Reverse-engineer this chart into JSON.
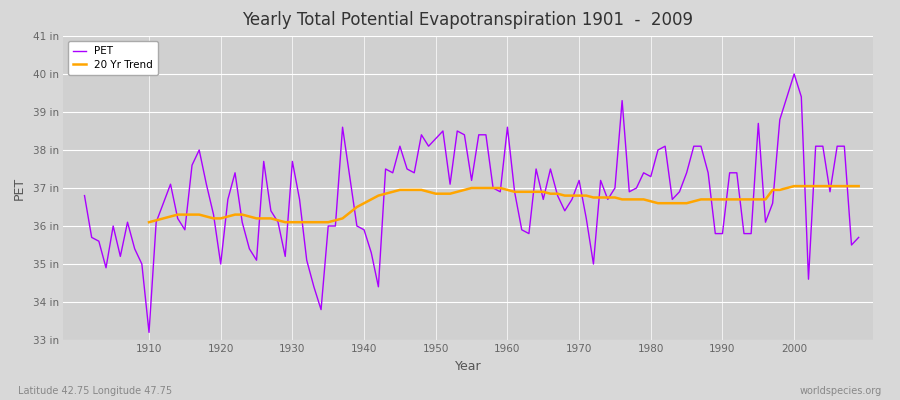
{
  "title": "Yearly Total Potential Evapotranspiration 1901  -  2009",
  "xlabel": "Year",
  "ylabel": "PET",
  "subtitle_left": "Latitude 42.75 Longitude 47.75",
  "subtitle_right": "worldspecies.org",
  "pet_color": "#AA00FF",
  "trend_color": "#FFA500",
  "bg_color": "#D8D8D8",
  "plot_bg_color": "#D0D0D0",
  "grid_color": "#FFFFFF",
  "ylim": [
    33,
    41
  ],
  "yticks": [
    33,
    34,
    35,
    36,
    37,
    38,
    39,
    40,
    41
  ],
  "ytick_labels": [
    "33 in",
    "34 in",
    "35 in",
    "36 in",
    "37 in",
    "38 in",
    "39 in",
    "40 in",
    "41 in"
  ],
  "years": [
    1901,
    1902,
    1903,
    1904,
    1905,
    1906,
    1907,
    1908,
    1909,
    1910,
    1911,
    1912,
    1913,
    1914,
    1915,
    1916,
    1917,
    1918,
    1919,
    1920,
    1921,
    1922,
    1923,
    1924,
    1925,
    1926,
    1927,
    1928,
    1929,
    1930,
    1931,
    1932,
    1933,
    1934,
    1935,
    1936,
    1937,
    1938,
    1939,
    1940,
    1941,
    1942,
    1943,
    1944,
    1945,
    1946,
    1947,
    1948,
    1949,
    1950,
    1951,
    1952,
    1953,
    1954,
    1955,
    1956,
    1957,
    1958,
    1959,
    1960,
    1961,
    1962,
    1963,
    1964,
    1965,
    1966,
    1967,
    1968,
    1969,
    1970,
    1971,
    1972,
    1973,
    1974,
    1975,
    1976,
    1977,
    1978,
    1979,
    1980,
    1981,
    1982,
    1983,
    1984,
    1985,
    1986,
    1987,
    1988,
    1989,
    1990,
    1991,
    1992,
    1993,
    1994,
    1995,
    1996,
    1997,
    1998,
    1999,
    2000,
    2001,
    2002,
    2003,
    2004,
    2005,
    2006,
    2007,
    2008,
    2009
  ],
  "pet_values": [
    36.8,
    35.7,
    35.6,
    34.9,
    36.0,
    35.2,
    36.1,
    35.4,
    35.0,
    33.2,
    36.1,
    36.6,
    37.1,
    36.2,
    35.9,
    37.6,
    38.0,
    37.1,
    36.3,
    35.0,
    36.7,
    37.4,
    36.1,
    35.4,
    35.1,
    37.7,
    36.4,
    36.1,
    35.2,
    37.7,
    36.7,
    35.1,
    34.4,
    33.8,
    36.0,
    36.0,
    38.6,
    37.3,
    36.0,
    35.9,
    35.3,
    34.4,
    37.5,
    37.4,
    38.1,
    37.5,
    37.4,
    38.4,
    38.1,
    38.3,
    38.5,
    37.1,
    38.5,
    38.4,
    37.2,
    38.4,
    38.4,
    37.0,
    36.9,
    38.6,
    36.9,
    35.9,
    35.8,
    37.5,
    36.7,
    37.5,
    36.8,
    36.4,
    36.7,
    37.2,
    36.2,
    35.0,
    37.2,
    36.7,
    37.0,
    39.3,
    36.9,
    37.0,
    37.4,
    37.3,
    38.0,
    38.1,
    36.7,
    36.9,
    37.4,
    38.1,
    38.1,
    37.4,
    35.8,
    35.8,
    37.4,
    37.4,
    35.8,
    35.8,
    38.7,
    36.1,
    36.6,
    38.8,
    39.4,
    40.0,
    39.4,
    34.6,
    38.1,
    38.1,
    36.9,
    38.1,
    38.1,
    35.5,
    35.7
  ],
  "trend_years": [
    1910,
    1911,
    1912,
    1913,
    1914,
    1915,
    1916,
    1917,
    1918,
    1919,
    1920,
    1921,
    1922,
    1923,
    1924,
    1925,
    1926,
    1927,
    1928,
    1929,
    1930,
    1931,
    1932,
    1933,
    1934,
    1935,
    1936,
    1937,
    1938,
    1939,
    1940,
    1941,
    1942,
    1943,
    1944,
    1945,
    1946,
    1947,
    1948,
    1949,
    1950,
    1951,
    1952,
    1953,
    1954,
    1955,
    1956,
    1957,
    1958,
    1959,
    1960,
    1961,
    1962,
    1963,
    1964,
    1965,
    1966,
    1967,
    1968,
    1969,
    1970,
    1971,
    1972,
    1973,
    1974,
    1975,
    1976,
    1977,
    1978,
    1979,
    1980,
    1981,
    1982,
    1983,
    1984,
    1985,
    1986,
    1987,
    1988,
    1989,
    1990,
    1991,
    1992,
    1993,
    1994,
    1995,
    1996,
    1997,
    1998,
    1999,
    2000,
    2001,
    2002,
    2003,
    2004,
    2005,
    2006,
    2007,
    2008,
    2009
  ],
  "trend_values": [
    36.1,
    36.15,
    36.2,
    36.25,
    36.3,
    36.3,
    36.3,
    36.3,
    36.25,
    36.2,
    36.2,
    36.25,
    36.3,
    36.3,
    36.25,
    36.2,
    36.2,
    36.2,
    36.15,
    36.1,
    36.1,
    36.1,
    36.1,
    36.1,
    36.1,
    36.1,
    36.15,
    36.2,
    36.35,
    36.5,
    36.6,
    36.7,
    36.8,
    36.85,
    36.9,
    36.95,
    36.95,
    36.95,
    36.95,
    36.9,
    36.85,
    36.85,
    36.85,
    36.9,
    36.95,
    37.0,
    37.0,
    37.0,
    37.0,
    37.0,
    36.95,
    36.9,
    36.9,
    36.9,
    36.9,
    36.9,
    36.85,
    36.85,
    36.8,
    36.8,
    36.8,
    36.8,
    36.75,
    36.75,
    36.75,
    36.75,
    36.7,
    36.7,
    36.7,
    36.7,
    36.65,
    36.6,
    36.6,
    36.6,
    36.6,
    36.6,
    36.65,
    36.7,
    36.7,
    36.7,
    36.7,
    36.7,
    36.7,
    36.7,
    36.7,
    36.7,
    36.7,
    36.95,
    36.95,
    37.0,
    37.05,
    37.05,
    37.05,
    37.05,
    37.05,
    37.05,
    37.05,
    37.05,
    37.05,
    37.05
  ]
}
